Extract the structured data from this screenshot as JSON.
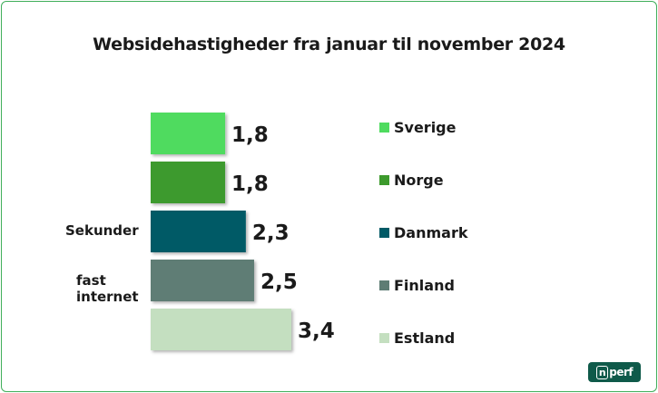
{
  "chart_data": {
    "type": "bar",
    "orientation": "horizontal",
    "title": "Websidehastigheder fra januar til november 2024",
    "ylabel_lines": [
      "Sekunder",
      "fast",
      "internet"
    ],
    "categories": [
      "Sverige",
      "Norge",
      "Danmark",
      "Finland",
      "Estland"
    ],
    "values": [
      1.8,
      1.8,
      2.3,
      2.5,
      3.4
    ],
    "value_labels": [
      "1,8",
      "1,8",
      "2,3",
      "2,5",
      "3,4"
    ],
    "colors": [
      "#4fdb5f",
      "#3d9a2d",
      "#005a66",
      "#5e7d74",
      "#c4dfc0"
    ],
    "legend": {
      "placement": "right",
      "entries": [
        "Sverige",
        "Norge",
        "Danmark",
        "Finland",
        "Estland"
      ]
    },
    "xlim": [
      0,
      3.4
    ],
    "grid": false
  },
  "branding": {
    "logo_text": "nperf"
  }
}
